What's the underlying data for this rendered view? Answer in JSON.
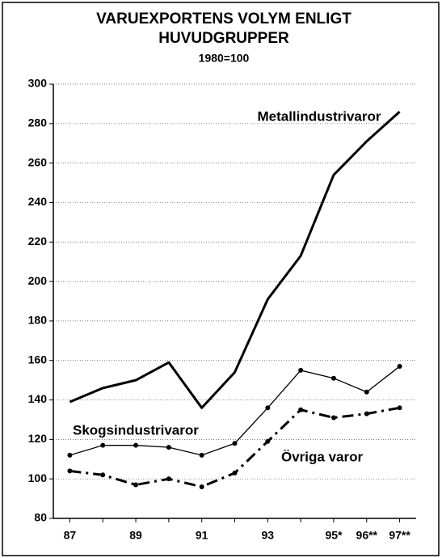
{
  "chart_data": {
    "type": "line",
    "title": [
      "VARUEXPORTENS VOLYM ENLIGT",
      "HUVUDGRUPPER"
    ],
    "subtitle": "1980=100",
    "categories": [
      "87",
      null,
      "89",
      null,
      "91",
      null,
      "93",
      null,
      "95*",
      "96**",
      "97**"
    ],
    "series": [
      {
        "name": "Metallindustrivaror",
        "color": "#000000",
        "line_style": "solid",
        "line_width": 3,
        "markers": false,
        "values": [
          139,
          146,
          150,
          159,
          136,
          154,
          191,
          213,
          254,
          271,
          286
        ]
      },
      {
        "name": "Skogsindustrivaror",
        "color": "#000000",
        "line_style": "solid",
        "line_width": 1.3,
        "markers": true,
        "values": [
          112,
          117,
          117,
          116,
          112,
          118,
          136,
          155,
          151,
          144,
          157
        ]
      },
      {
        "name": "Övriga varor",
        "color": "#000000",
        "line_style": "dashdot",
        "line_width": 3,
        "markers": true,
        "values": [
          104,
          102,
          97,
          100,
          96,
          103,
          119,
          135,
          131,
          133,
          136
        ]
      }
    ],
    "ylim": [
      80,
      300
    ],
    "yticks": [
      80,
      100,
      120,
      140,
      160,
      180,
      200,
      220,
      240,
      260,
      280,
      300
    ],
    "grid": true
  }
}
